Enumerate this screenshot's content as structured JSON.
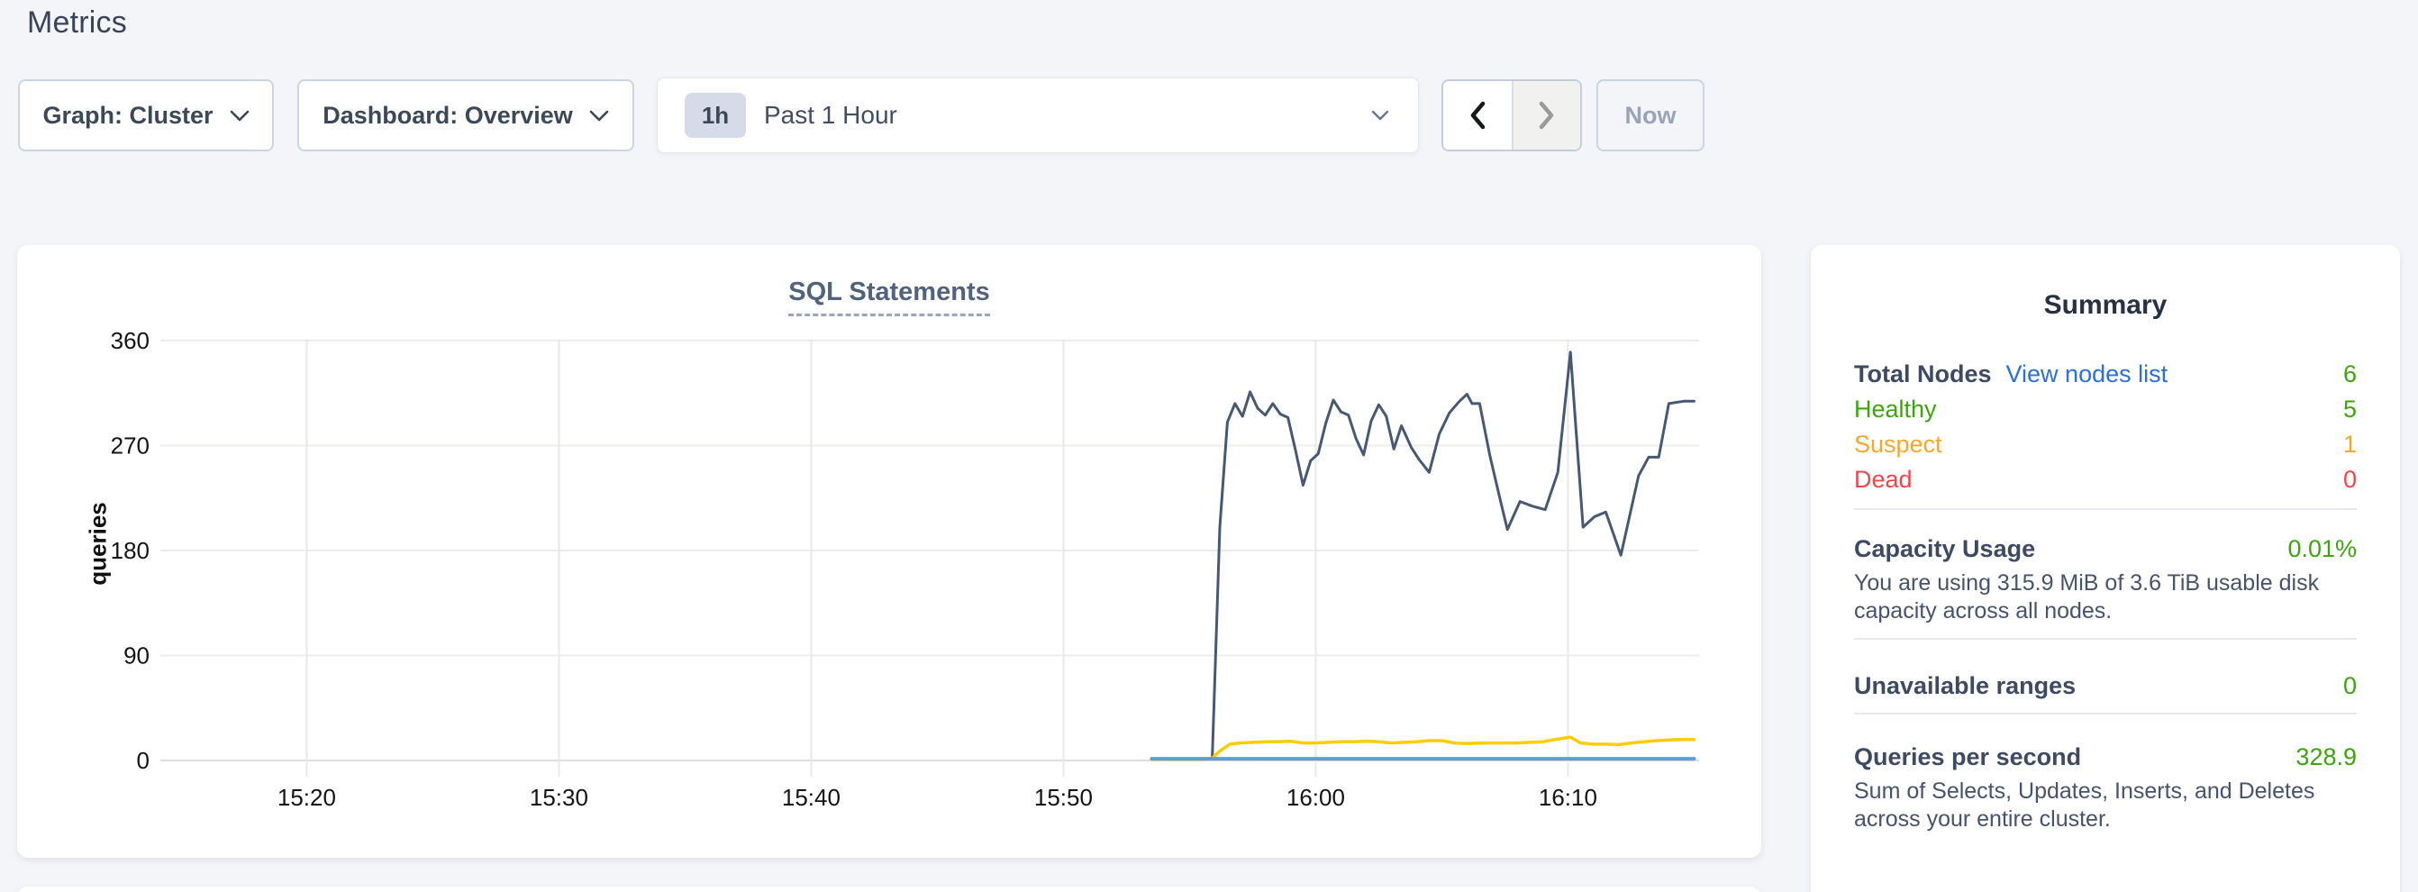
{
  "page": {
    "title": "Metrics"
  },
  "toolbar": {
    "graph_dropdown": {
      "label": "Graph: Cluster"
    },
    "dashboard_dropdown": {
      "label": "Dashboard: Overview"
    },
    "time_selector": {
      "badge": "1h",
      "label": "Past 1 Hour"
    },
    "now_button_label": "Now"
  },
  "icons": {
    "graph_dropdown_icon": "chevron-down",
    "dashboard_dropdown_icon": "chevron-down",
    "time_selector_icon": "chevron-down",
    "prev_icon": "chevron-left",
    "next_icon": "chevron-right"
  },
  "colors": {
    "accent_link": "#2a6fdb",
    "green": "#3ca50e",
    "orange": "#f6a82c",
    "red": "#f4434a",
    "series_dark": "#475872",
    "series_yellow": "#ffcd02",
    "series_blue": "#5b9fd6"
  },
  "chart_data": {
    "type": "line",
    "title": "SQL Statements",
    "ylabel": "queries",
    "x_unit": "minutes after 15:00",
    "xlim": [
      14.2,
      75.2
    ],
    "ylim": [
      0,
      360
    ],
    "grid": true,
    "legend": "none",
    "y_ticks": [
      0,
      90,
      180,
      270,
      360
    ],
    "x_ticks": [
      {
        "t": 20,
        "label": "15:20"
      },
      {
        "t": 30,
        "label": "15:30"
      },
      {
        "t": 40,
        "label": "15:40"
      },
      {
        "t": 50,
        "label": "15:50"
      },
      {
        "t": 60,
        "label": "16:00"
      },
      {
        "t": 70,
        "label": "16:10"
      }
    ],
    "series": [
      {
        "name": "series-1-dark",
        "color": "#475872",
        "width": 3,
        "points": [
          [
            53.5,
            1
          ],
          [
            54.5,
            1
          ],
          [
            55.5,
            1
          ],
          [
            55.9,
            2
          ],
          [
            56.2,
            200
          ],
          [
            56.5,
            290
          ],
          [
            56.8,
            306
          ],
          [
            57.1,
            295
          ],
          [
            57.4,
            316
          ],
          [
            57.7,
            302
          ],
          [
            58.0,
            296
          ],
          [
            58.3,
            306
          ],
          [
            58.6,
            297
          ],
          [
            58.9,
            294
          ],
          [
            59.2,
            266
          ],
          [
            59.5,
            236
          ],
          [
            59.8,
            257
          ],
          [
            60.1,
            263
          ],
          [
            60.4,
            289
          ],
          [
            60.7,
            309
          ],
          [
            61.0,
            299
          ],
          [
            61.3,
            296
          ],
          [
            61.6,
            276
          ],
          [
            61.9,
            262
          ],
          [
            62.2,
            291
          ],
          [
            62.5,
            305
          ],
          [
            62.8,
            295
          ],
          [
            63.1,
            267
          ],
          [
            63.4,
            287
          ],
          [
            63.8,
            268
          ],
          [
            64.1,
            258
          ],
          [
            64.5,
            247
          ],
          [
            64.9,
            280
          ],
          [
            65.3,
            298
          ],
          [
            65.7,
            308
          ],
          [
            66.0,
            314
          ],
          [
            66.2,
            306
          ],
          [
            66.5,
            306
          ],
          [
            66.9,
            262
          ],
          [
            67.3,
            225
          ],
          [
            67.6,
            198
          ],
          [
            68.1,
            222
          ],
          [
            68.6,
            218
          ],
          [
            69.1,
            215
          ],
          [
            69.6,
            247
          ],
          [
            70.1,
            350
          ],
          [
            70.6,
            200
          ],
          [
            71.05,
            209
          ],
          [
            71.5,
            213
          ],
          [
            72.1,
            176
          ],
          [
            72.8,
            244
          ],
          [
            73.2,
            260
          ],
          [
            73.6,
            260
          ],
          [
            74.0,
            306
          ],
          [
            74.6,
            308
          ],
          [
            75.0,
            308
          ]
        ]
      },
      {
        "name": "series-2-yellow",
        "color": "#ffcd02",
        "width": 3.5,
        "points": [
          [
            53.5,
            1
          ],
          [
            55.5,
            1
          ],
          [
            55.9,
            2
          ],
          [
            56.2,
            8
          ],
          [
            56.6,
            14
          ],
          [
            57.0,
            15
          ],
          [
            57.5,
            15.5
          ],
          [
            58.0,
            16
          ],
          [
            58.5,
            16
          ],
          [
            59.0,
            16.5
          ],
          [
            59.5,
            15
          ],
          [
            60.0,
            15
          ],
          [
            60.5,
            15.5
          ],
          [
            61.0,
            16
          ],
          [
            61.5,
            16
          ],
          [
            62.0,
            16.5
          ],
          [
            62.5,
            16
          ],
          [
            63.0,
            15
          ],
          [
            63.5,
            15.5
          ],
          [
            64.0,
            16
          ],
          [
            64.5,
            17
          ],
          [
            65.0,
            17
          ],
          [
            65.5,
            15
          ],
          [
            66.0,
            14.5
          ],
          [
            66.5,
            15
          ],
          [
            67.0,
            15
          ],
          [
            67.5,
            15
          ],
          [
            68.0,
            15
          ],
          [
            68.5,
            15.5
          ],
          [
            69.0,
            16
          ],
          [
            69.5,
            18
          ],
          [
            70.1,
            20
          ],
          [
            70.5,
            15
          ],
          [
            71.0,
            14
          ],
          [
            71.5,
            14
          ],
          [
            72.0,
            13.5
          ],
          [
            72.5,
            15
          ],
          [
            73.0,
            16
          ],
          [
            73.5,
            17
          ],
          [
            74.0,
            17.5
          ],
          [
            74.5,
            18
          ],
          [
            75.0,
            18
          ]
        ]
      },
      {
        "name": "series-3-blue",
        "color": "#5b9fd6",
        "width": 4,
        "points": [
          [
            53.5,
            1.5
          ],
          [
            75.0,
            1.5
          ]
        ]
      }
    ]
  },
  "summary": {
    "title": "Summary",
    "node_rows": [
      {
        "label": "Total Nodes",
        "link": "View nodes list",
        "value": "6"
      },
      {
        "label": "Healthy",
        "value": "5"
      },
      {
        "label": "Suspect",
        "value": "1"
      },
      {
        "label": "Dead",
        "value": "0"
      }
    ],
    "sections": [
      {
        "label": "Capacity Usage",
        "value": "0.01%",
        "description": "You are using 315.9 MiB of 3.6 TiB usable disk capacity across all nodes."
      },
      {
        "label": "Unavailable ranges",
        "value": "0",
        "description": ""
      },
      {
        "label": "Queries per second",
        "value": "328.9",
        "description": "Sum of Selects, Updates, Inserts, and Deletes across your entire cluster."
      }
    ]
  }
}
